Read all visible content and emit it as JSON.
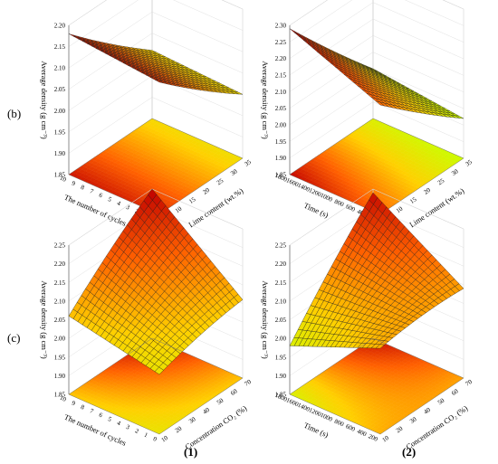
{
  "row_labels": [
    "(b)",
    "(c)"
  ],
  "col_labels": [
    "(1)",
    "(2)"
  ],
  "chart_data": [
    {
      "type": "surface3d",
      "panel": "b1",
      "zlabel": "Average density (g cm⁻³)",
      "xlabel": "Lime content (wt.%)",
      "ylabel": "The number of cycles",
      "x_ticks": [
        "5",
        "10",
        "15",
        "20",
        "25",
        "30",
        "35"
      ],
      "y_ticks": [
        "0",
        "1",
        "2",
        "3",
        "4",
        "5",
        "6",
        "7",
        "8",
        "9",
        "10"
      ],
      "z_ticks": [
        "1.85",
        "1.90",
        "1.95",
        "2.00",
        "2.05",
        "2.10",
        "2.15",
        "2.20"
      ],
      "xlim": [
        5,
        35
      ],
      "ylim": [
        0,
        10
      ],
      "zlim": [
        1.85,
        2.2
      ],
      "z_corners": {
        "x_min_y_min": 2.16,
        "x_max_y_min": 2.0,
        "x_min_y_max": 2.18,
        "x_max_y_max": 2.01
      },
      "colormap": [
        "#00c800",
        "#c8ff00",
        "#ffd000",
        "#ff6000",
        "#c00000"
      ],
      "contour_projection": true
    },
    {
      "type": "surface3d",
      "panel": "b2",
      "zlabel": "Average density (g cm⁻³)",
      "xlabel": "Lime content (wt.%)",
      "ylabel": "Time (s)",
      "x_ticks": [
        "5",
        "10",
        "15",
        "20",
        "25",
        "30",
        "35"
      ],
      "y_ticks": [
        "200",
        "400",
        "600",
        "800",
        "1000",
        "1200",
        "1400",
        "1600",
        "1800"
      ],
      "z_ticks": [
        "1.85",
        "1.90",
        "1.95",
        "2.00",
        "2.05",
        "2.10",
        "2.15",
        "2.20",
        "2.25",
        "2.30"
      ],
      "xlim": [
        5,
        35
      ],
      "ylim": [
        200,
        1800
      ],
      "zlim": [
        1.85,
        2.3
      ],
      "z_corners": {
        "x_min_y_min": 2.18,
        "x_max_y_min": 1.97,
        "x_min_y_max": 2.29,
        "x_max_y_max": 2.0
      },
      "colormap": [
        "#00c800",
        "#c8ff00",
        "#ffd000",
        "#ff6000",
        "#c00000"
      ],
      "contour_projection": true
    },
    {
      "type": "surface3d",
      "panel": "c1",
      "zlabel": "Average density (g cm⁻³)",
      "xlabel": "Concentration CO₂ (%)",
      "ylabel": "The number of cycles",
      "x_ticks": [
        "10",
        "20",
        "30",
        "40",
        "50",
        "60",
        "70"
      ],
      "y_ticks": [
        "0",
        "1",
        "2",
        "3",
        "4",
        "5",
        "6",
        "7",
        "8",
        "9",
        "10"
      ],
      "z_ticks": [
        "1.85",
        "1.90",
        "1.95",
        "2.00",
        "2.05",
        "2.10",
        "2.15",
        "2.20",
        "2.25"
      ],
      "xlim": [
        10,
        70
      ],
      "ylim": [
        0,
        10
      ],
      "zlim": [
        1.85,
        2.25
      ],
      "z_corners": {
        "x_min_y_min": 2.01,
        "x_max_y_min": 2.06,
        "x_min_y_max": 2.06,
        "x_max_y_max": 2.25
      },
      "colormap": [
        "#00c800",
        "#c8ff00",
        "#ffd000",
        "#ff6000",
        "#c00000"
      ],
      "contour_projection": true
    },
    {
      "type": "surface3d",
      "panel": "c2",
      "zlabel": "Average density (g cm⁻³)",
      "xlabel": "Concentration CO₂ (%)",
      "ylabel": "Time (s)",
      "x_ticks": [
        "10",
        "20",
        "30",
        "40",
        "50",
        "60",
        "70"
      ],
      "y_ticks": [
        "200",
        "400",
        "600",
        "800",
        "1000",
        "1200",
        "1400",
        "1600",
        "1800"
      ],
      "z_ticks": [
        "1.85",
        "1.90",
        "1.95",
        "2.00",
        "2.05",
        "2.10",
        "2.15",
        "2.20",
        "2.25"
      ],
      "xlim": [
        10,
        70
      ],
      "ylim": [
        200,
        1800
      ],
      "zlim": [
        1.85,
        2.25
      ],
      "z_corners": {
        "x_min_y_min": 2.08,
        "x_max_y_min": 2.09,
        "x_min_y_max": 1.98,
        "x_max_y_max": 2.24
      },
      "colormap": [
        "#00c800",
        "#c8ff00",
        "#ffd000",
        "#ff6000",
        "#c00000"
      ],
      "contour_projection": true
    }
  ]
}
